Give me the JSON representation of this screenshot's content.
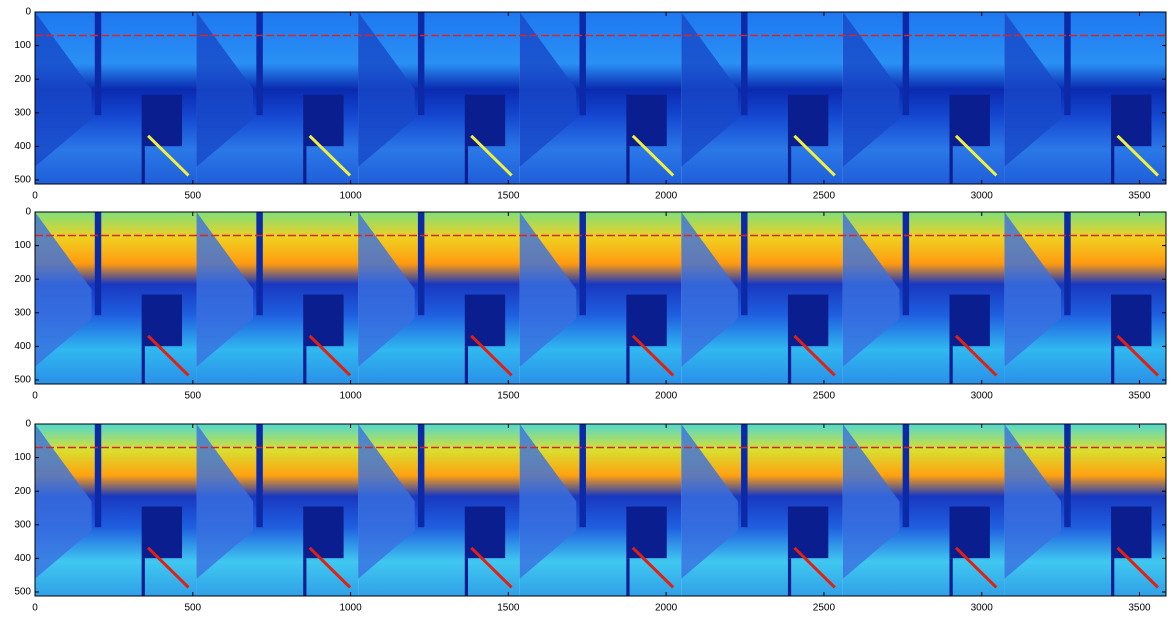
{
  "charts": [
    {
      "type": "image",
      "xlim": [
        0,
        3584
      ],
      "ylim": [
        512,
        0
      ],
      "xticks": [
        0,
        500,
        1000,
        1500,
        2000,
        2500,
        3000,
        3500
      ],
      "yticks": [
        0,
        100,
        200,
        300,
        400,
        500
      ],
      "hline": 70,
      "hline_color": "#d62728"
    },
    {
      "type": "image",
      "xlim": [
        0,
        3584
      ],
      "ylim": [
        512,
        0
      ],
      "xticks": [
        0,
        500,
        1000,
        1500,
        2000,
        2500,
        3000,
        3500
      ],
      "yticks": [
        0,
        100,
        200,
        300,
        400,
        500
      ],
      "hline": 70,
      "hline_color": "#d62728"
    },
    {
      "type": "image",
      "xlim": [
        0,
        3584
      ],
      "ylim": [
        512,
        0
      ],
      "xticks": [
        0,
        500,
        1000,
        1500,
        2000,
        2500,
        3000,
        3500
      ],
      "yticks": [
        0,
        100,
        200,
        300,
        400,
        500
      ],
      "hline": 70,
      "hline_color": "#d62728"
    }
  ]
}
